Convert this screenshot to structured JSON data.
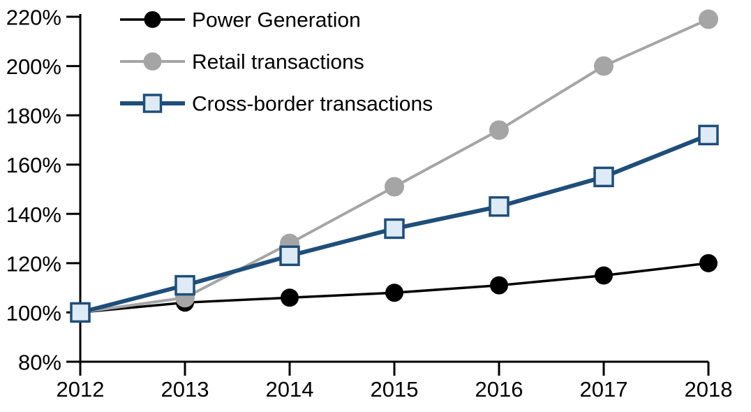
{
  "chart_data": {
    "type": "line",
    "title": "",
    "xlabel": "",
    "ylabel": "",
    "categories": [
      "2012",
      "2013",
      "2014",
      "2015",
      "2016",
      "2017",
      "2018"
    ],
    "series": [
      {
        "name": "Power Generation",
        "values": [
          100,
          104,
          106,
          108,
          111,
          115,
          120
        ],
        "color": "#000000",
        "marker": "circle",
        "marker_fill": "#000000",
        "line_width": 3.5,
        "marker_size": 13
      },
      {
        "name": "Retail transactions",
        "values": [
          100,
          106,
          128,
          151,
          174,
          200,
          219
        ],
        "color": "#A5A5A5",
        "marker": "circle",
        "marker_fill": "#A5A5A5",
        "line_width": 4,
        "marker_size": 14
      },
      {
        "name": "Cross-border transactions",
        "values": [
          100,
          111,
          123,
          134,
          143,
          155,
          172
        ],
        "color": "#1F4E79",
        "marker": "square",
        "marker_fill": "#DEEBF7",
        "line_width": 6,
        "marker_size": 13
      }
    ],
    "ylim": [
      80,
      220
    ],
    "ytick_step": 20,
    "ytick_suffix": "%",
    "grid": false,
    "legend_position": "top-left",
    "axis_color": "#000000"
  }
}
